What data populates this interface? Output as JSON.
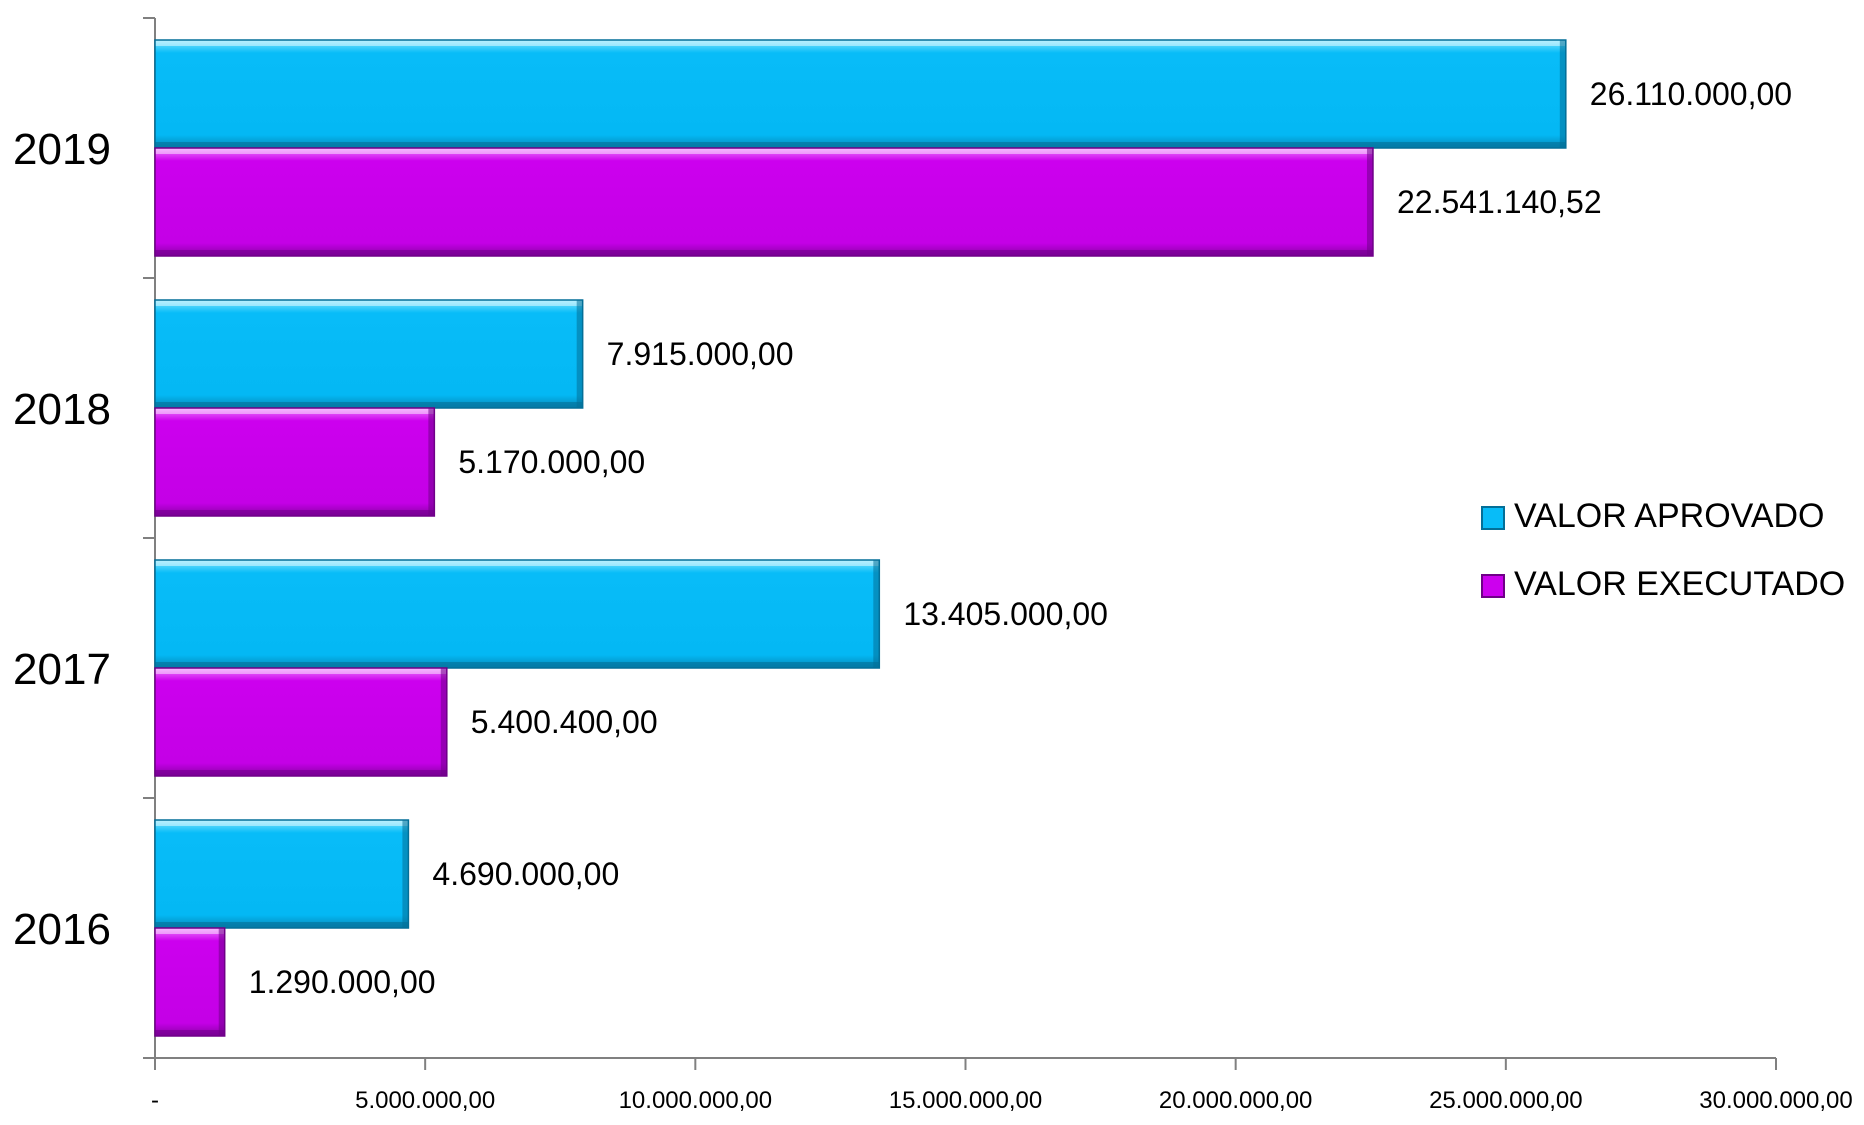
{
  "chart_data": {
    "type": "bar",
    "orientation": "horizontal",
    "categories": [
      "2016",
      "2017",
      "2018",
      "2019"
    ],
    "series": [
      {
        "name": "VALOR APROVADO",
        "color": "#00BFFF",
        "values": [
          4690000,
          13405000,
          7915000,
          26110000
        ],
        "labels": [
          "4.690.000,00",
          "13.405.000,00",
          "7.915.000,00",
          "26.110.000,00"
        ]
      },
      {
        "name": "VALOR EXECUTADO",
        "color": "#CC00EE",
        "values": [
          1290000,
          5400400,
          5170000,
          22541140.52
        ],
        "labels": [
          "1.290.000,00",
          "5.400.400,00",
          "5.170.000,00",
          "22.541.140,52"
        ]
      }
    ],
    "xlim": [
      0,
      30000000
    ],
    "x_ticks": [
      0,
      5000000,
      10000000,
      15000000,
      20000000,
      25000000,
      30000000
    ],
    "x_tick_labels": [
      "-",
      "5.000.000,00",
      "10.000.000,00",
      "15.000.000,00",
      "20.000.000,00",
      "25.000.000,00",
      "30.000.000,00"
    ],
    "title": "",
    "xlabel": "",
    "ylabel": "",
    "grid": false,
    "legend_position": "right"
  }
}
